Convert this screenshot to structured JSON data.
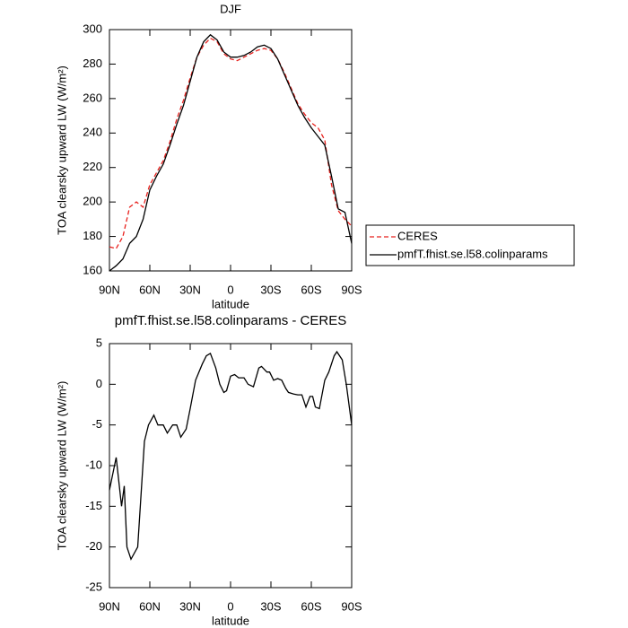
{
  "chart_data": [
    {
      "type": "line",
      "title": "DJF",
      "xlabel": "latitude",
      "ylabel": "TOA clearsky upward LW (W/m²)",
      "x": [
        90,
        85,
        80,
        75,
        70,
        65,
        60,
        55,
        50,
        45,
        40,
        35,
        30,
        25,
        20,
        15,
        10,
        5,
        0,
        -5,
        -10,
        -15,
        -20,
        -25,
        -30,
        -35,
        -40,
        -45,
        -50,
        -55,
        -60,
        -65,
        -70,
        -75,
        -80,
        -85,
        -90
      ],
      "series": [
        {
          "name": "CERES",
          "color": "#e8211d",
          "style": "dashed",
          "values": [
            174,
            173,
            180,
            197,
            200,
            197,
            210,
            217,
            224,
            235,
            248,
            259,
            272,
            284,
            291,
            295,
            293,
            286,
            283,
            282,
            284,
            286,
            288,
            289,
            288,
            283,
            275,
            266,
            257,
            251,
            246,
            243,
            236,
            210,
            195,
            190,
            186
          ]
        },
        {
          "name": "pmfT.fhist.se.l58.colinparams",
          "color": "#000000",
          "style": "solid",
          "values": [
            160,
            163,
            167,
            176,
            180,
            190,
            207,
            215,
            222,
            233,
            245,
            256,
            270,
            284,
            293,
            297,
            294,
            287,
            284,
            284,
            285,
            287,
            290,
            291,
            289,
            283,
            274,
            265,
            256,
            249,
            243,
            238,
            233,
            215,
            196,
            194,
            176
          ]
        }
      ],
      "xlim": [
        90,
        -90
      ],
      "xticks": [
        {
          "value": 90,
          "label": "90N"
        },
        {
          "value": 60,
          "label": "60N"
        },
        {
          "value": 30,
          "label": "30N"
        },
        0,
        {
          "value": -30,
          "label": "30S"
        },
        {
          "value": -60,
          "label": "60S"
        },
        {
          "value": -90,
          "label": "90S"
        }
      ],
      "ylim": [
        160,
        300
      ],
      "yticks": [
        160,
        180,
        200,
        220,
        240,
        260,
        280,
        300
      ],
      "legend": "outside-right"
    },
    {
      "type": "line",
      "title": "pmfT.fhist.se.l58.colinparams - CERES",
      "xlabel": "latitude",
      "ylabel": "TOA clearsky upward LW (W/m²)",
      "x": [
        90,
        85,
        81,
        79,
        77,
        74,
        69,
        64,
        61,
        57,
        54,
        50,
        47,
        43,
        40,
        37,
        33,
        30,
        26,
        21,
        18,
        15,
        11,
        8,
        5,
        3,
        0,
        -3,
        -6,
        -10,
        -13,
        -17,
        -21,
        -23,
        -27,
        -29,
        -32,
        -35,
        -38,
        -41,
        -43,
        -47,
        -50,
        -53,
        -56,
        -59,
        -61,
        -63,
        -66,
        -70,
        -73,
        -77,
        -79,
        -83,
        -86,
        -90
      ],
      "series": [
        {
          "color": "#000000",
          "style": "solid",
          "values": [
            -13,
            -9,
            -15,
            -12.5,
            -20,
            -21.5,
            -20,
            -7,
            -5,
            -3.8,
            -5,
            -5,
            -6,
            -5,
            -5,
            -6.5,
            -5.5,
            -3,
            0.5,
            2.5,
            3.5,
            3.8,
            2,
            0,
            -1,
            -0.8,
            1,
            1.2,
            0.8,
            0.8,
            0,
            -0.3,
            2,
            2.2,
            1.5,
            1.5,
            0.5,
            0.7,
            0.5,
            -0.5,
            -1,
            -1.2,
            -1.3,
            -1.3,
            -2.8,
            -1.5,
            -1.5,
            -2.8,
            -3,
            0.5,
            1.5,
            3.5,
            4,
            3,
            0,
            -5
          ]
        }
      ],
      "xlim": [
        90,
        -90
      ],
      "xticks": [
        {
          "value": 90,
          "label": "90N"
        },
        {
          "value": 60,
          "label": "60N"
        },
        {
          "value": 30,
          "label": "30N"
        },
        0,
        {
          "value": -30,
          "label": "30S"
        },
        {
          "value": -60,
          "label": "60S"
        },
        {
          "value": -90,
          "label": "90S"
        }
      ],
      "ylim": [
        -25,
        5
      ],
      "yticks": [
        5,
        0,
        -5,
        -10,
        -15,
        -20,
        -25
      ]
    }
  ]
}
